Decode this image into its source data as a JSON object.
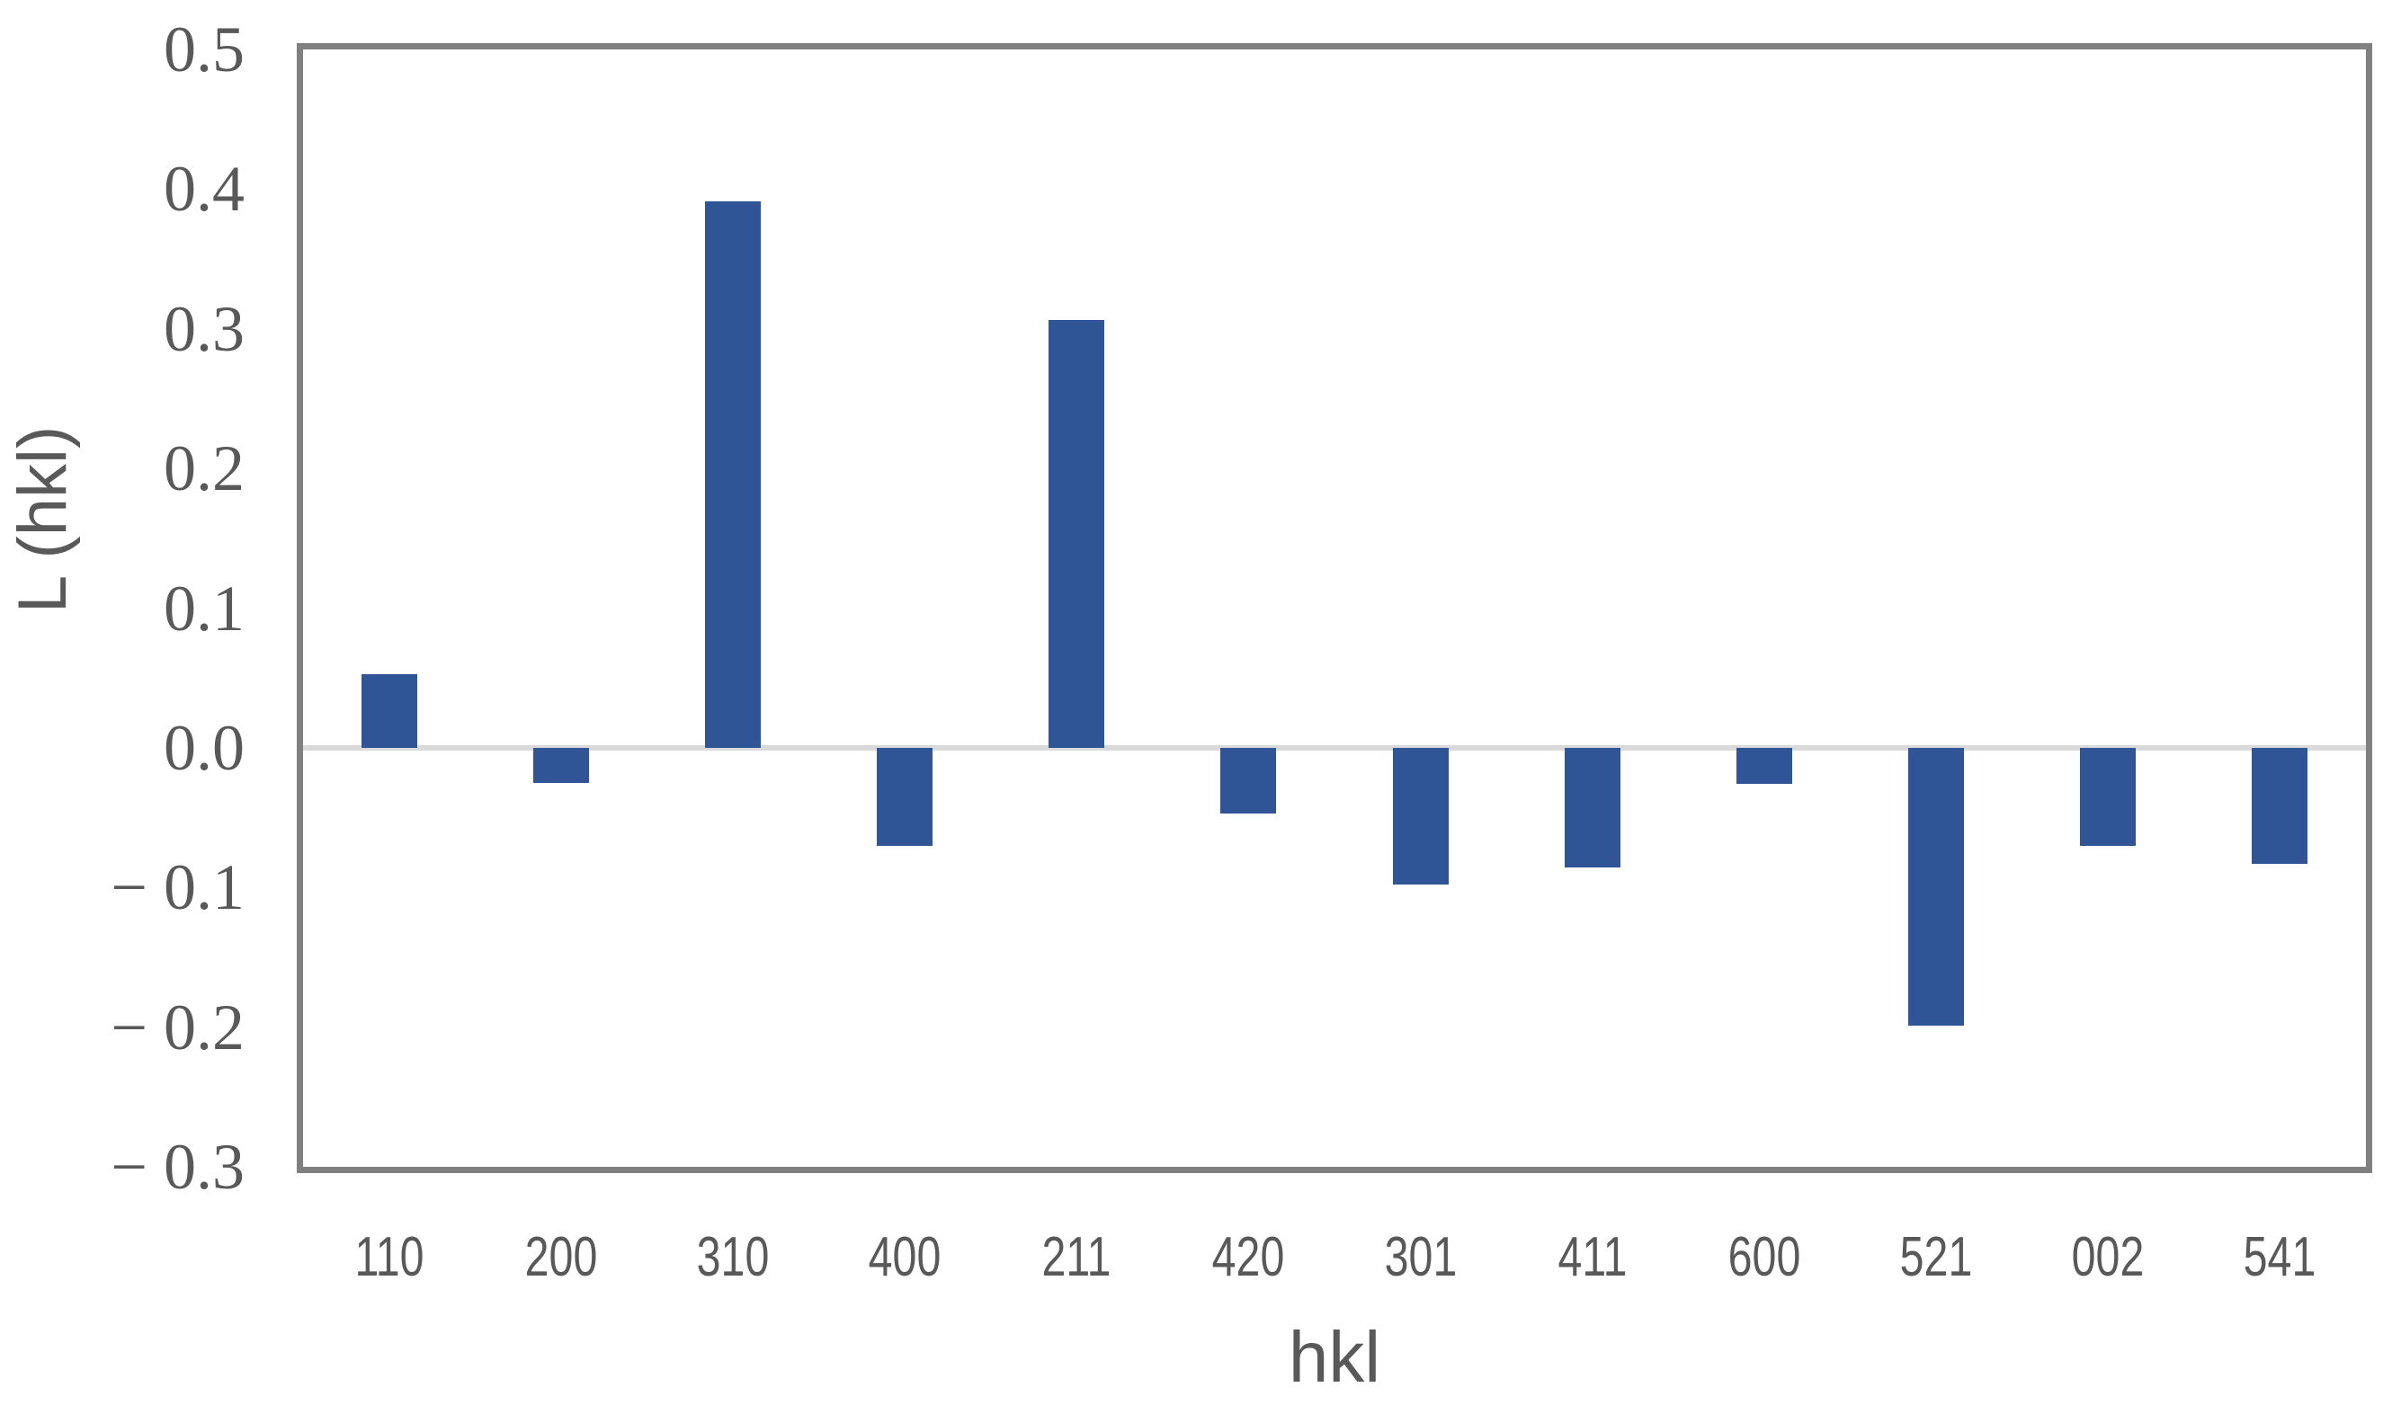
{
  "colors": {
    "bar": "#2F5597",
    "frame": "#808080",
    "zero_gridline": "#D9D9D9",
    "text": "#595959"
  },
  "chart_data": {
    "type": "bar",
    "title": "",
    "xlabel": "hkl",
    "ylabel": "L (hkl)",
    "categories": [
      "110",
      "200",
      "310",
      "400",
      "211",
      "420",
      "301",
      "411",
      "600",
      "521",
      "002",
      "541"
    ],
    "values": [
      0.053,
      -0.025,
      0.391,
      -0.07,
      0.306,
      -0.047,
      -0.098,
      -0.086,
      -0.026,
      -0.199,
      -0.07,
      -0.083
    ],
    "ylim": [
      -0.3,
      0.5
    ],
    "ytick_values": [
      0.5,
      0.4,
      0.3,
      0.2,
      0.1,
      0.0,
      -0.1,
      -0.2,
      -0.3
    ],
    "ytick_labels": [
      "0.5",
      "0.4",
      "0.3",
      "0.2",
      "0.1",
      "0.0",
      "− 0.1",
      "− 0.2",
      "− 0.3"
    ],
    "grid": "zero-line-only",
    "legend": "none"
  }
}
